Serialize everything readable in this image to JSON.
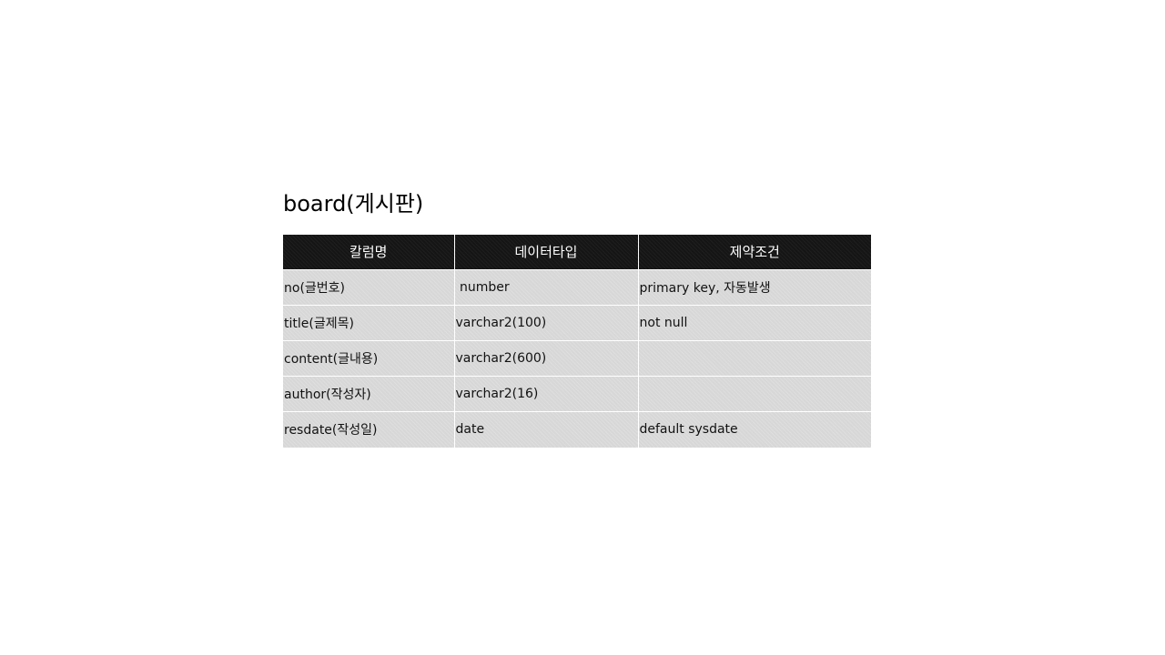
{
  "slide": {
    "title": "board(게시판)"
  },
  "table": {
    "headers": [
      "칼럼명",
      "데이터타입",
      "제약조건"
    ],
    "rows": [
      [
        "no(글번호)",
        " number",
        "primary key, 자동발생"
      ],
      [
        "title(글제목)",
        "varchar2(100)",
        "not null"
      ],
      [
        "content(글내용)",
        "varchar2(600)",
        ""
      ],
      [
        "author(작성자)",
        "varchar2(16)",
        ""
      ],
      [
        "resdate(작성일)",
        "date",
        "default sysdate"
      ]
    ]
  },
  "colors": {
    "header_bg": "#151515",
    "cell_bg": "#d7d7d7",
    "grid_line": "#ffffff"
  }
}
